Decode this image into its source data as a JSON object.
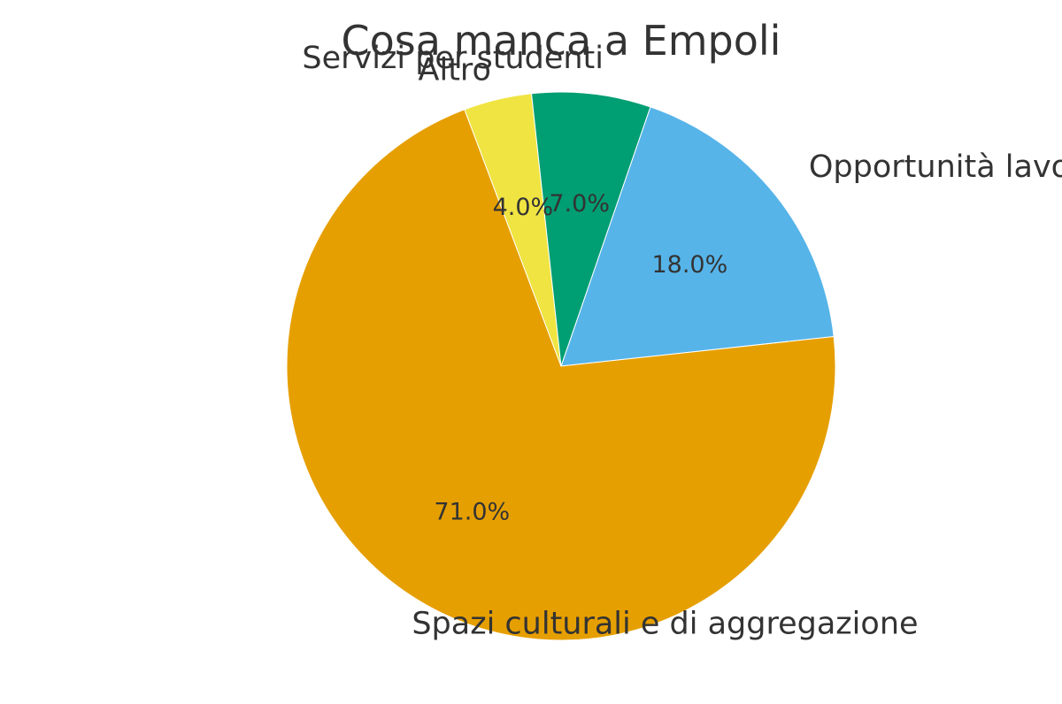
{
  "chart_data": {
    "type": "pie",
    "title": "Cosa manca a Empoli",
    "slices": [
      {
        "label": "Opportunità lavorative",
        "value": 18.0,
        "pct_label": "18.0%",
        "color": "#56B4E9"
      },
      {
        "label": "Spazi culturali e di aggregazione",
        "value": 71.0,
        "pct_label": "71.0%",
        "color": "#E69F00"
      },
      {
        "label": "Altro",
        "value": 4.0,
        "pct_label": "4.0%",
        "color": "#F0E442"
      },
      {
        "label": "Servizi per studenti",
        "value": 7.0,
        "pct_label": "7.0%",
        "color": "#009E73"
      }
    ],
    "start_angle_deg": 71,
    "direction": "clockwise"
  }
}
